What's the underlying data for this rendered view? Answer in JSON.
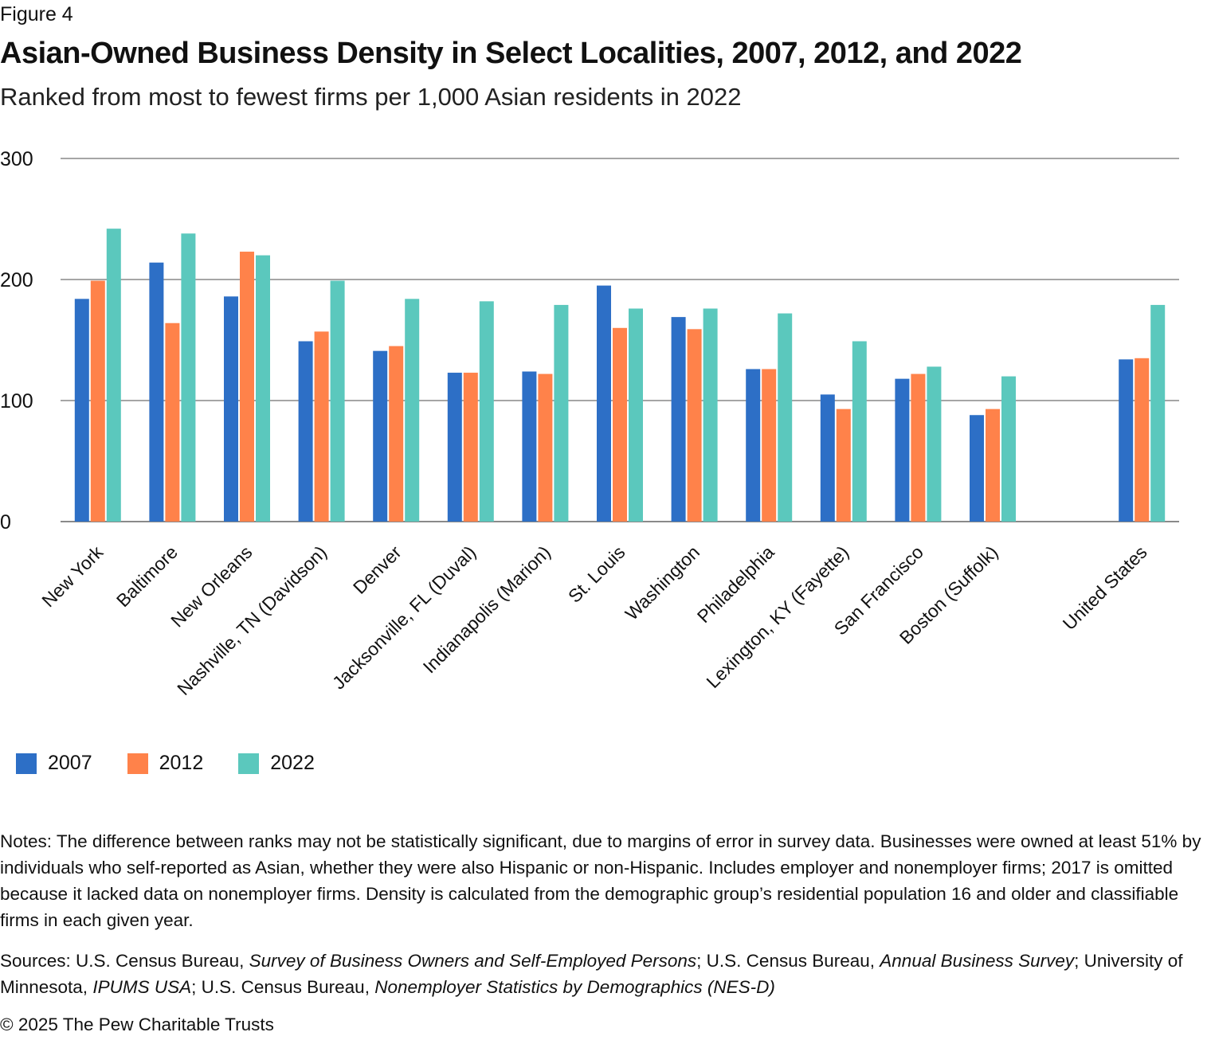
{
  "figure_label": "Figure 4",
  "chart_data": {
    "type": "bar",
    "title": "Asian-Owned Business Density in Select Localities, 2007, 2012, and 2022",
    "subtitle": "Ranked from most to fewest firms per 1,000 Asian residents in 2022",
    "categories": [
      "New York",
      "Baltimore",
      "New Orleans",
      "Nashville, TN (Davidson)",
      "Denver",
      "Jacksonville, FL (Duval)",
      "Indianapolis (Marion)",
      "St. Louis",
      "Washington",
      "Philadelphia",
      "Lexington, KY (Fayette)",
      "San Francisco",
      "Boston (Suffolk)",
      "United States"
    ],
    "series": [
      {
        "name": "2007",
        "color": "#2D6FC6",
        "values": [
          184,
          214,
          186,
          149,
          141,
          123,
          124,
          195,
          169,
          126,
          105,
          118,
          88,
          134
        ]
      },
      {
        "name": "2012",
        "color": "#FF824A",
        "values": [
          199,
          164,
          223,
          157,
          145,
          123,
          122,
          160,
          159,
          126,
          93,
          122,
          93,
          135
        ]
      },
      {
        "name": "2022",
        "color": "#5BC8BD",
        "values": [
          242,
          238,
          220,
          199,
          184,
          182,
          179,
          176,
          176,
          172,
          149,
          128,
          120,
          179
        ]
      }
    ],
    "ylim": [
      0,
      300
    ],
    "yticks": [
      "0",
      "100",
      "200",
      "300"
    ],
    "grid": true,
    "legend_position": "bottom-left"
  },
  "notes": "Notes: The difference between ranks may not be statistically significant, due to margins of error in survey data. Businesses were owned at least 51% by individuals who self-reported as Asian, whether they were also Hispanic or non-Hispanic. Includes employer and nonemployer firms; 2017 is omitted because it lacked data on nonemployer firms. Density is calculated from the demographic group’s residential population 16 and older and classifiable firms in each given year.",
  "sources": {
    "prefix": "Sources: U.S. Census Bureau, ",
    "s1": "Survey of Business Owners and Self-Employed Persons",
    "mid1": "; U.S. Census Bureau, ",
    "s2": "Annual Business Survey",
    "mid2": "; University of Minnesota, ",
    "s3": "IPUMS USA",
    "mid3": "; U.S. Census Bureau, ",
    "s4": "Nonemployer Statistics by Demographics (NES-D)"
  },
  "copyright": "© 2025 The Pew Charitable Trusts"
}
